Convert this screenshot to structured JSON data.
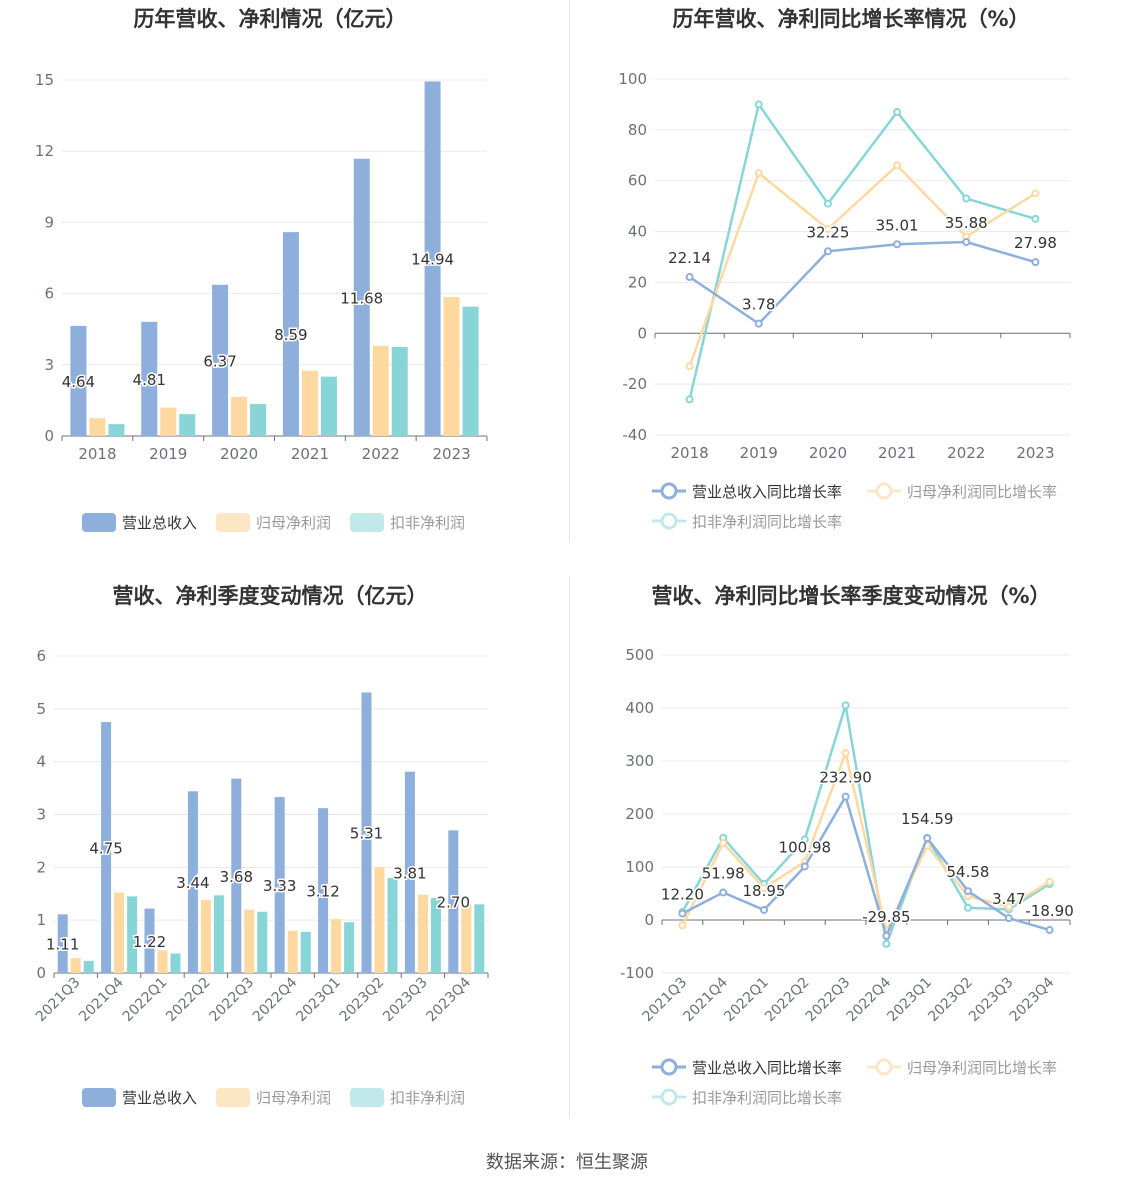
{
  "footer": "数据来源：恒生聚源",
  "colors": {
    "revenue": "#8eaedc",
    "parent": "#fdd9a0",
    "nonrec": "#88d5d8",
    "axis": "#6e7079",
    "grid": "#e6e8ee",
    "label": "#333333"
  },
  "chart_data": [
    {
      "type": "bar",
      "title": "历年营收、净利情况（亿元）",
      "categories": [
        "2018",
        "2019",
        "2020",
        "2021",
        "2022",
        "2023"
      ],
      "ylim": [
        0,
        15
      ],
      "yticks": [
        "0",
        "3",
        "6",
        "9",
        "12",
        "15"
      ],
      "legend_position": "bottom",
      "series": [
        {
          "name": "营业总收入",
          "values": [
            4.64,
            4.81,
            6.37,
            8.59,
            11.68,
            14.94
          ],
          "labels": [
            "4.64",
            "4.81",
            "6.37",
            "8.59",
            "11.68",
            "14.94"
          ]
        },
        {
          "name": "归母净利润",
          "values": [
            0.75,
            1.2,
            1.65,
            2.75,
            3.8,
            5.85
          ]
        },
        {
          "name": "扣非净利润",
          "values": [
            0.5,
            0.92,
            1.35,
            2.5,
            3.75,
            5.45
          ]
        }
      ]
    },
    {
      "type": "line",
      "title": "历年营收、净利同比增长率情况（%）",
      "categories": [
        "2018",
        "2019",
        "2020",
        "2021",
        "2022",
        "2023"
      ],
      "ylim": [
        -40,
        100
      ],
      "yticks": [
        "-40",
        "-20",
        "0",
        "20",
        "40",
        "60",
        "80",
        "100"
      ],
      "legend_position": "bottom",
      "series": [
        {
          "name": "营业总收入同比增长率",
          "values": [
            22.14,
            3.78,
            32.25,
            35.01,
            35.88,
            27.98
          ],
          "labels": [
            "22.14",
            "3.78",
            "32.25",
            "35.01",
            "35.88",
            "27.98"
          ]
        },
        {
          "name": "归母净利润同比增长率",
          "values": [
            -13,
            63,
            41,
            66,
            38,
            55
          ]
        },
        {
          "name": "扣非净利润同比增长率",
          "values": [
            -26,
            90,
            51,
            87,
            53,
            45
          ]
        }
      ]
    },
    {
      "type": "bar",
      "title": "营收、净利季度变动情况（亿元）",
      "categories": [
        "2021Q3",
        "2021Q4",
        "2022Q1",
        "2022Q2",
        "2022Q3",
        "2022Q4",
        "2023Q1",
        "2023Q2",
        "2023Q3",
        "2023Q4"
      ],
      "ylim": [
        0,
        6
      ],
      "yticks": [
        "0",
        "1",
        "2",
        "3",
        "4",
        "5",
        "6"
      ],
      "legend_position": "bottom",
      "series": [
        {
          "name": "营业总收入",
          "values": [
            1.11,
            4.75,
            1.22,
            3.44,
            3.68,
            3.33,
            3.12,
            5.31,
            3.81,
            2.7
          ],
          "labels": [
            "1.11",
            "4.75",
            "1.22",
            "3.44",
            "3.68",
            "3.33",
            "3.12",
            "5.31",
            "3.81",
            "2.70"
          ]
        },
        {
          "name": "归母净利润",
          "values": [
            0.28,
            1.52,
            0.43,
            1.38,
            1.2,
            0.8,
            1.02,
            2.0,
            1.48,
            1.3
          ]
        },
        {
          "name": "扣非净利润",
          "values": [
            0.23,
            1.45,
            0.37,
            1.47,
            1.16,
            0.78,
            0.96,
            1.8,
            1.42,
            1.3
          ]
        }
      ]
    },
    {
      "type": "line",
      "title": "营收、净利同比增长率季度变动情况（%）",
      "categories": [
        "2021Q3",
        "2021Q4",
        "2022Q1",
        "2022Q2",
        "2022Q3",
        "2022Q4",
        "2023Q1",
        "2023Q2",
        "2023Q3",
        "2023Q4"
      ],
      "ylim": [
        -100,
        500
      ],
      "yticks": [
        "-100",
        "0",
        "100",
        "200",
        "300",
        "400",
        "500"
      ],
      "legend_position": "bottom",
      "series": [
        {
          "name": "营业总收入同比增长率",
          "values": [
            12.2,
            51.98,
            18.95,
            100.98,
            232.9,
            -29.85,
            154.59,
            54.58,
            3.47,
            -18.9
          ],
          "labels": [
            "12.20",
            "51.98",
            "18.95",
            "100.98",
            "232.90",
            "-29.85",
            "154.59",
            "54.58",
            "3.47",
            "-18.90"
          ]
        },
        {
          "name": "归母净利润同比增长率",
          "values": [
            -10,
            145,
            60,
            110,
            315,
            -20,
            140,
            45,
            25,
            72
          ]
        },
        {
          "name": "扣非净利润同比增长率",
          "values": [
            15,
            155,
            68,
            152,
            405,
            -45,
            155,
            23,
            20,
            68
          ]
        }
      ]
    }
  ]
}
